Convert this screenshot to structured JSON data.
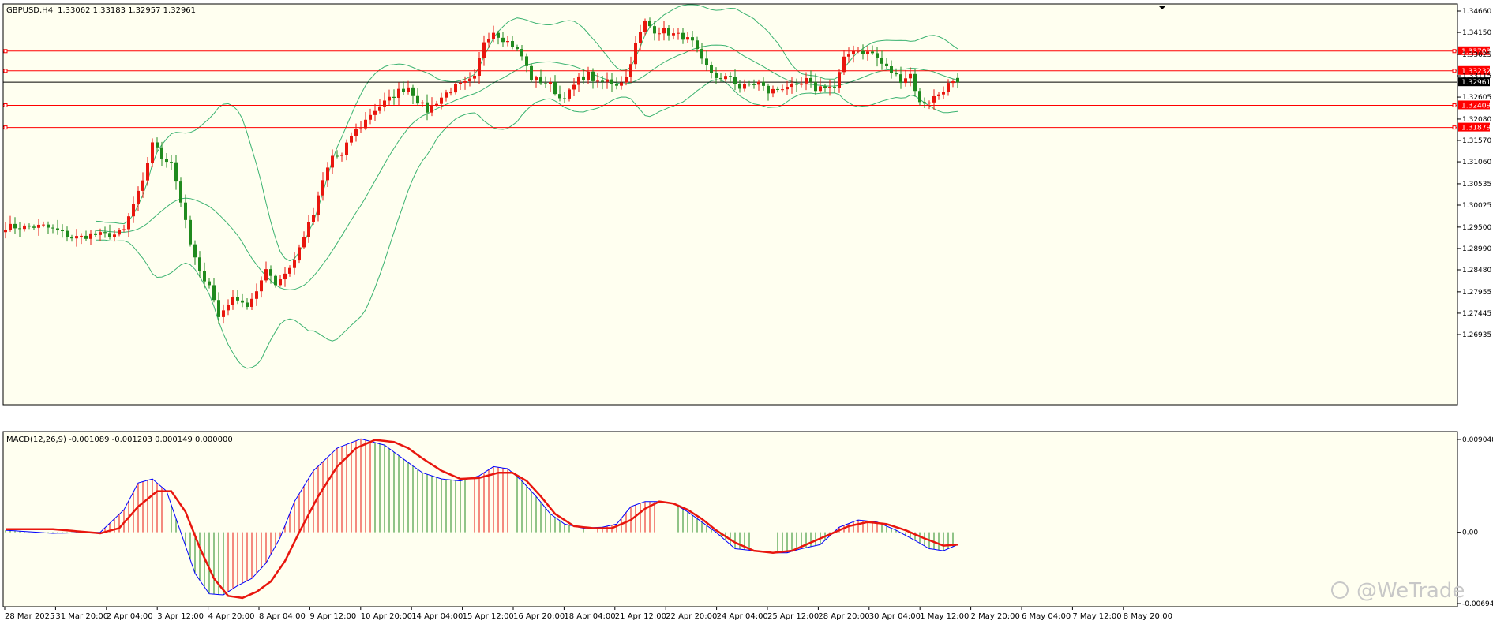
{
  "header": {
    "symbol": "GBPUSD,H4",
    "ohlc": "1.33062 1.33183 1.32957 1.32961"
  },
  "macd_header": "MACD(12,26,9) -0.001089 -0.001203 0.000149 0.000000",
  "watermark": "@WeTrade",
  "colors": {
    "background": "#FFFFF0",
    "bull_candle": "#E8160E",
    "bear_candle": "#208A1E",
    "bands": "#3CB371",
    "level_line": "#FF0000",
    "price_line": "#000000",
    "macd_line": "#0000FF",
    "signal_line": "#E8160E"
  },
  "chart_data": [
    {
      "type": "candlestick",
      "title": "GBPUSD,H4",
      "y_ticks": [
        "1.34660",
        "1.34150",
        "1.33625",
        "1.33115",
        "1.32605",
        "1.32080",
        "1.31570",
        "1.31060",
        "1.30535",
        "1.30025",
        "1.29500",
        "1.28990",
        "1.28480",
        "1.27955",
        "1.27445",
        "1.26935"
      ],
      "ylim": [
        1.26935,
        1.3466
      ],
      "x_ticks": [
        "28 Mar 2025",
        "31 Mar 20:00",
        "2 Apr 04:00",
        "3 Apr 12:00",
        "4 Apr 20:00",
        "8 Apr 04:00",
        "9 Apr 12:00",
        "10 Apr 20:00",
        "14 Apr 04:00",
        "15 Apr 12:00",
        "16 Apr 20:00",
        "18 Apr 04:00",
        "21 Apr 12:00",
        "22 Apr 20:00",
        "24 Apr 04:00",
        "25 Apr 12:00",
        "28 Apr 20:00",
        "30 Apr 04:00",
        "1 May 12:00",
        "2 May 20:00",
        "6 May 04:00",
        "7 May 12:00",
        "8 May 20:00"
      ],
      "current_price": "1.32961",
      "levels": [
        "1.33703",
        "1.33232",
        "1.32409",
        "1.31879"
      ],
      "close_path": [
        [
          0,
          1.2951
        ],
        [
          4,
          1.295
        ],
        [
          8,
          1.2952
        ],
        [
          12,
          1.2936
        ],
        [
          14,
          1.2925
        ],
        [
          16,
          1.2926
        ],
        [
          18,
          1.2932
        ],
        [
          21,
          1.2931
        ],
        [
          23,
          1.2932
        ],
        [
          25,
          1.2942
        ],
        [
          27,
          1.3005
        ],
        [
          29,
          1.3055
        ],
        [
          31,
          1.3155
        ],
        [
          33,
          1.3115
        ],
        [
          35,
          1.3108
        ],
        [
          37,
          1.3012
        ],
        [
          39,
          1.2908
        ],
        [
          41,
          1.284
        ],
        [
          43,
          1.2815
        ],
        [
          45,
          1.2735
        ],
        [
          47,
          1.277
        ],
        [
          49,
          1.2782
        ],
        [
          51,
          1.2762
        ],
        [
          53,
          1.279
        ],
        [
          55,
          1.2855
        ],
        [
          57,
          1.2815
        ],
        [
          59,
          1.284
        ],
        [
          61,
          1.287
        ],
        [
          63,
          1.293
        ],
        [
          65,
          1.298
        ],
        [
          67,
          1.306
        ],
        [
          69,
          1.312
        ],
        [
          71,
          1.312
        ],
        [
          73,
          1.317
        ],
        [
          75,
          1.319
        ],
        [
          77,
          1.322
        ],
        [
          79,
          1.324
        ],
        [
          81,
          1.3255
        ],
        [
          83,
          1.3275
        ],
        [
          85,
          1.3285
        ],
        [
          87,
          1.3252
        ],
        [
          89,
          1.3228
        ],
        [
          91,
          1.325
        ],
        [
          93,
          1.327
        ],
        [
          95,
          1.3285
        ],
        [
          97,
          1.3292
        ],
        [
          99,
          1.3305
        ],
        [
          101,
          1.3395
        ],
        [
          103,
          1.3418
        ],
        [
          105,
          1.34
        ],
        [
          107,
          1.3385
        ],
        [
          109,
          1.3358
        ],
        [
          111,
          1.3305
        ],
        [
          113,
          1.3298
        ],
        [
          115,
          1.329
        ],
        [
          117,
          1.3258
        ],
        [
          119,
          1.3272
        ],
        [
          121,
          1.3303
        ],
        [
          123,
          1.3315
        ],
        [
          125,
          1.3292
        ],
        [
          127,
          1.33
        ],
        [
          129,
          1.3292
        ],
        [
          131,
          1.3308
        ],
        [
          133,
          1.3385
        ],
        [
          135,
          1.344
        ],
        [
          137,
          1.342
        ],
        [
          139,
          1.3418
        ],
        [
          141,
          1.341
        ],
        [
          143,
          1.3405
        ],
        [
          145,
          1.339
        ],
        [
          147,
          1.3345
        ],
        [
          149,
          1.332
        ],
        [
          151,
          1.33
        ],
        [
          153,
          1.331
        ],
        [
          155,
          1.3282
        ],
        [
          157,
          1.329
        ],
        [
          159,
          1.3295
        ],
        [
          161,
          1.3272
        ],
        [
          163,
          1.328
        ],
        [
          165,
          1.3288
        ],
        [
          167,
          1.3282
        ],
        [
          169,
          1.33
        ],
        [
          171,
          1.328
        ],
        [
          173,
          1.3288
        ],
        [
          175,
          1.3282
        ],
        [
          177,
          1.335
        ],
        [
          179,
          1.3375
        ],
        [
          181,
          1.3368
        ],
        [
          183,
          1.3365
        ],
        [
          185,
          1.334
        ],
        [
          187,
          1.332
        ],
        [
          189,
          1.3302
        ],
        [
          191,
          1.3315
        ],
        [
          193,
          1.3245
        ],
        [
          195,
          1.3252
        ],
        [
          197,
          1.3268
        ],
        [
          199,
          1.329
        ],
        [
          201,
          1.3296
        ]
      ],
      "bollinger": {
        "period": 20,
        "deviations": 2
      }
    },
    {
      "type": "macd",
      "title": "MACD(12,26,9)",
      "y_ticks": [
        "0.009048",
        "0.00",
        "-0.006946"
      ],
      "ylim": [
        -0.006946,
        0.009048
      ],
      "macd_path": [
        [
          0,
          0.0002
        ],
        [
          10,
          -0.0001
        ],
        [
          20,
          0.0
        ],
        [
          25,
          0.0022
        ],
        [
          28,
          0.0048
        ],
        [
          31,
          0.0052
        ],
        [
          34,
          0.004
        ],
        [
          37,
          0.0
        ],
        [
          40,
          -0.004
        ],
        [
          43,
          -0.006
        ],
        [
          46,
          -0.0061
        ],
        [
          49,
          -0.0052
        ],
        [
          52,
          -0.0045
        ],
        [
          55,
          -0.003
        ],
        [
          58,
          -0.0005
        ],
        [
          61,
          0.003
        ],
        [
          65,
          0.006
        ],
        [
          70,
          0.0082
        ],
        [
          75,
          0.0091
        ],
        [
          80,
          0.0085
        ],
        [
          85,
          0.0068
        ],
        [
          88,
          0.0058
        ],
        [
          92,
          0.0052
        ],
        [
          96,
          0.005
        ],
        [
          100,
          0.0055
        ],
        [
          103,
          0.0064
        ],
        [
          106,
          0.0062
        ],
        [
          109,
          0.005
        ],
        [
          112,
          0.0035
        ],
        [
          115,
          0.0018
        ],
        [
          118,
          0.0008
        ],
        [
          122,
          0.0004
        ],
        [
          126,
          0.0005
        ],
        [
          129,
          0.0008
        ],
        [
          132,
          0.0025
        ],
        [
          135,
          0.003
        ],
        [
          138,
          0.003
        ],
        [
          141,
          0.0028
        ],
        [
          144,
          0.002
        ],
        [
          147,
          0.001
        ],
        [
          150,
          0.0
        ],
        [
          154,
          -0.0016
        ],
        [
          158,
          -0.0018
        ],
        [
          162,
          -0.002
        ],
        [
          165,
          -0.002
        ],
        [
          168,
          -0.0016
        ],
        [
          172,
          -0.0012
        ],
        [
          176,
          0.0005
        ],
        [
          180,
          0.0012
        ],
        [
          184,
          0.001
        ],
        [
          188,
          0.0002
        ],
        [
          192,
          -0.0008
        ],
        [
          195,
          -0.0016
        ],
        [
          198,
          -0.0018
        ],
        [
          201,
          -0.0012
        ]
      ],
      "signal_path": [
        [
          0,
          0.0003
        ],
        [
          10,
          0.0003
        ],
        [
          20,
          -0.0001
        ],
        [
          24,
          0.0004
        ],
        [
          28,
          0.0025
        ],
        [
          32,
          0.004
        ],
        [
          35,
          0.004
        ],
        [
          38,
          0.002
        ],
        [
          41,
          -0.0015
        ],
        [
          44,
          -0.0045
        ],
        [
          47,
          -0.0062
        ],
        [
          50,
          -0.0064
        ],
        [
          53,
          -0.0058
        ],
        [
          56,
          -0.0048
        ],
        [
          59,
          -0.0028
        ],
        [
          62,
          0.0
        ],
        [
          66,
          0.0035
        ],
        [
          70,
          0.0064
        ],
        [
          74,
          0.0082
        ],
        [
          78,
          0.009
        ],
        [
          82,
          0.0088
        ],
        [
          85,
          0.0082
        ],
        [
          88,
          0.0072
        ],
        [
          92,
          0.006
        ],
        [
          96,
          0.0052
        ],
        [
          100,
          0.0053
        ],
        [
          104,
          0.0058
        ],
        [
          107,
          0.0058
        ],
        [
          110,
          0.005
        ],
        [
          113,
          0.0035
        ],
        [
          116,
          0.0018
        ],
        [
          120,
          0.0006
        ],
        [
          124,
          0.0004
        ],
        [
          128,
          0.0004
        ],
        [
          132,
          0.0012
        ],
        [
          135,
          0.0023
        ],
        [
          138,
          0.003
        ],
        [
          141,
          0.0028
        ],
        [
          144,
          0.0022
        ],
        [
          147,
          0.0013
        ],
        [
          150,
          0.0002
        ],
        [
          154,
          -0.001
        ],
        [
          158,
          -0.0018
        ],
        [
          162,
          -0.002
        ],
        [
          166,
          -0.0018
        ],
        [
          170,
          -0.001
        ],
        [
          174,
          -0.0002
        ],
        [
          178,
          0.0006
        ],
        [
          182,
          0.001
        ],
        [
          186,
          0.0008
        ],
        [
          190,
          0.0002
        ],
        [
          194,
          -0.0006
        ],
        [
          198,
          -0.0013
        ],
        [
          201,
          -0.0012
        ]
      ]
    }
  ]
}
